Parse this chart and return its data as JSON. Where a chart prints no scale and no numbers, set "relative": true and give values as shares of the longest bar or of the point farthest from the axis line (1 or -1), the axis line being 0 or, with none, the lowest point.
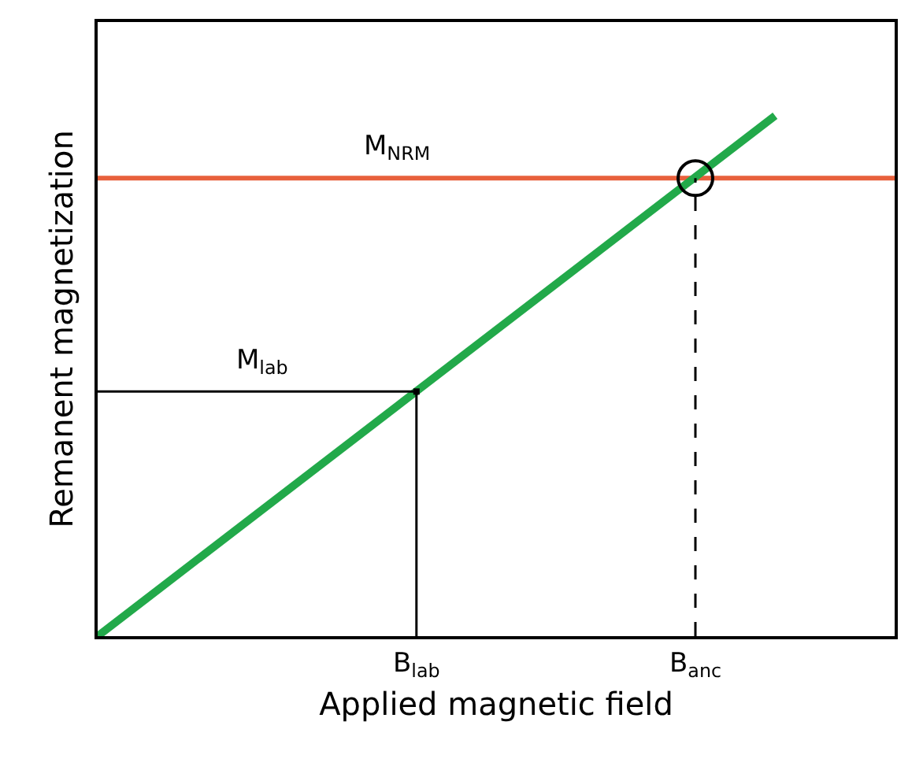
{
  "chart_data": {
    "type": "line",
    "relative": true,
    "xlabel": "Applied magnetic field",
    "ylabel": "Remanent magnetization",
    "categories": [
      null,
      null,
      null,
      null,
      null,
      null,
      null,
      null,
      "B$_{lab}$",
      null,
      null,
      null,
      null,
      null,
      null,
      "B$_{anc}$",
      null,
      null,
      null,
      null,
      null
    ],
    "series": [
      {
        "color": "#22a94a",
        "values": [
          0,
          null,
          null,
          null,
          null,
          null,
          null,
          null,
          null,
          null,
          null,
          null,
          null,
          null,
          null,
          null,
          null,
          1,
          null,
          null,
          null
        ]
      },
      {
        "color": "#000000",
        "values": [
          0.47,
          null,
          null,
          null,
          null,
          null,
          null,
          null,
          0.47,
          null,
          null,
          null,
          null,
          null,
          null,
          null,
          null,
          null,
          null,
          null,
          null
        ]
      },
      {
        "type": "lollipop",
        "color": "#000000",
        "marker": "square",
        "values": [
          null,
          null,
          null,
          null,
          null,
          null,
          null,
          null,
          0.47,
          null,
          null,
          null,
          null,
          null,
          null,
          null,
          null,
          null,
          null,
          null,
          null
        ]
      },
      {
        "type": "lollipop",
        "color": "#000000",
        "marker": "circle",
        "line_style": "dashed",
        "values": [
          null,
          null,
          null,
          null,
          null,
          null,
          null,
          null,
          null,
          null,
          null,
          null,
          null,
          null,
          null,
          0.88,
          null,
          null,
          null,
          null,
          null
        ]
      }
    ],
    "ref_lines": [
      {
        "axis": "y",
        "value": 0.88,
        "color": "#e8603c"
      }
    ],
    "annotations": [
      {
        "text": "M$_{NRM}$",
        "y": 0.88
      },
      {
        "text": "M$_{lab}$",
        "y": 0.47
      }
    ],
    "grid": false,
    "legend": false
  }
}
